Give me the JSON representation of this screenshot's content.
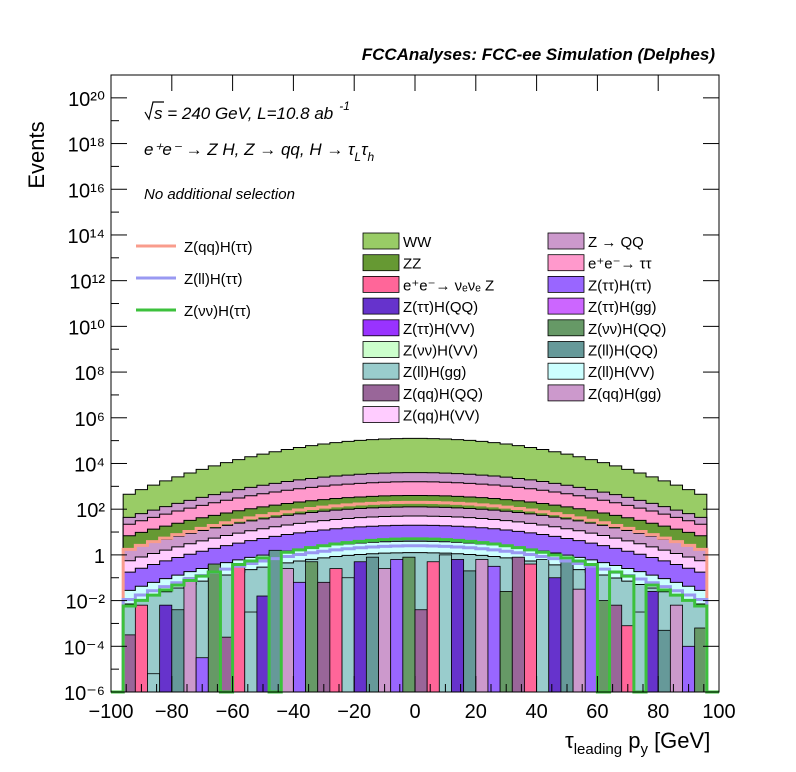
{
  "header": {
    "title": "FCCAnalyses: FCC-ee Simulation (Delphes)"
  },
  "annotations": {
    "energy_prefix": "s",
    "energy_text": " = 240 GeV, L=10.8 ab",
    "energy_exp": "-1",
    "process_text": "e⁺e⁻ → Z H, Z → qq, H → τ",
    "process_sub1": "L",
    "process_tau": "τ",
    "process_sub2": "h",
    "selection": "No additional selection"
  },
  "axes": {
    "ylabel": "Events",
    "xlabel_main": "τ",
    "xlabel_sub": "leading",
    "xlabel_p": " p",
    "xlabel_psub": "y",
    "xlabel_unit": " [GeV]"
  },
  "legend_lines": [
    {
      "label": "Z(qq)H(ττ)",
      "color": "#f99c8c"
    },
    {
      "label": "Z(ll)H(ττ)",
      "color": "#9999f2"
    },
    {
      "label": "Z(νν)H(ττ)",
      "color": "#3cc13c"
    }
  ],
  "legend_col2": [
    {
      "label": "WW",
      "color": "#99cc66"
    },
    {
      "label": "ZZ",
      "color": "#669933"
    },
    {
      "label": "e⁺e⁻→ νₑνₑ Z",
      "color": "#ff6699"
    },
    {
      "label": "Z(ττ)H(QQ)",
      "color": "#6633cc"
    },
    {
      "label": "Z(ττ)H(VV)",
      "color": "#9933ff"
    },
    {
      "label": "Z(νν)H(VV)",
      "color": "#ccffcc"
    },
    {
      "label": "Z(ll)H(gg)",
      "color": "#99cccc"
    },
    {
      "label": "Z(qq)H(QQ)",
      "color": "#996699"
    },
    {
      "label": "Z(qq)H(VV)",
      "color": "#ffccff"
    }
  ],
  "legend_col3": [
    {
      "label": "Z → QQ",
      "color": "#cc99cc"
    },
    {
      "label": "e⁺e⁻→ ττ",
      "color": "#ff99cc"
    },
    {
      "label": "Z(ττ)H(ττ)",
      "color": "#9966ff"
    },
    {
      "label": "Z(ττ)H(gg)",
      "color": "#cc66ff"
    },
    {
      "label": "Z(νν)H(QQ)",
      "color": "#669966"
    },
    {
      "label": "Z(ll)H(QQ)",
      "color": "#669999"
    },
    {
      "label": "Z(ll)H(VV)",
      "color": "#ccffff"
    },
    {
      "label": "Z(qq)H(gg)",
      "color": "#cc99cc"
    }
  ],
  "chart_data": {
    "type": "area",
    "title": "FCCAnalyses: FCC-ee Simulation (Delphes)",
    "xlabel": "τ_leading p_y [GeV]",
    "ylabel": "Events",
    "xlim": [
      -100,
      100
    ],
    "ylim_log10": [
      -6,
      21
    ],
    "yscale": "log",
    "x_ticks": [
      -100,
      -80,
      -60,
      -40,
      -20,
      0,
      20,
      40,
      60,
      80,
      100
    ],
    "y_tick_labels": [
      "10⁻⁶",
      "10⁻⁴",
      "10⁻²",
      "1",
      "10²",
      "10⁴",
      "10⁶",
      "10⁸",
      "10¹⁰",
      "10¹²",
      "10¹⁴",
      "10¹⁶",
      "10¹⁸",
      "10²⁰"
    ],
    "stack_top_layers_log10_peak": [
      {
        "name": "WW",
        "peak": 5.1,
        "edge": 2.6,
        "color": "#99cc66"
      },
      {
        "name": "Z → QQ",
        "peak": 3.6,
        "edge": 1.6,
        "color": "#cc99cc"
      },
      {
        "name": "e⁺e⁻→ ττ",
        "peak": 3.2,
        "edge": 1.3,
        "color": "#ff99cc"
      },
      {
        "name": "ZZ",
        "peak": 2.6,
        "edge": 0.8,
        "color": "#669933"
      },
      {
        "name": "Z(qq)H(gg)",
        "peak": 2.1,
        "edge": 0.2,
        "color": "#cc99cc"
      },
      {
        "name": "Z(qq)H(VV)",
        "peak": 1.7,
        "edge": -0.3,
        "color": "#ffccff"
      },
      {
        "name": "Z(ττ)H(ττ)",
        "peak": 1.3,
        "edge": -0.8,
        "color": "#9966ff"
      },
      {
        "name": "Z(ll)H(VV)",
        "peak": 0.6,
        "edge": -1.6,
        "color": "#ccffff"
      },
      {
        "name": "Z(ll)H(gg)",
        "peak": 0.1,
        "edge": -2.2,
        "color": "#99cccc"
      }
    ],
    "lines": [
      {
        "name": "Z(qq)H(ττ)",
        "color": "#f99c8c",
        "peak_log10": 2.3,
        "edge_log10": 0.2
      },
      {
        "name": "Z(ll)H(ττ)",
        "color": "#9999f2",
        "peak_log10": 0.4,
        "edge_log10": -2.0
      },
      {
        "name": "Z(νν)H(ττ)",
        "color": "#3cc13c",
        "peak_log10": 0.7,
        "edge_log10": -2.3
      }
    ]
  }
}
